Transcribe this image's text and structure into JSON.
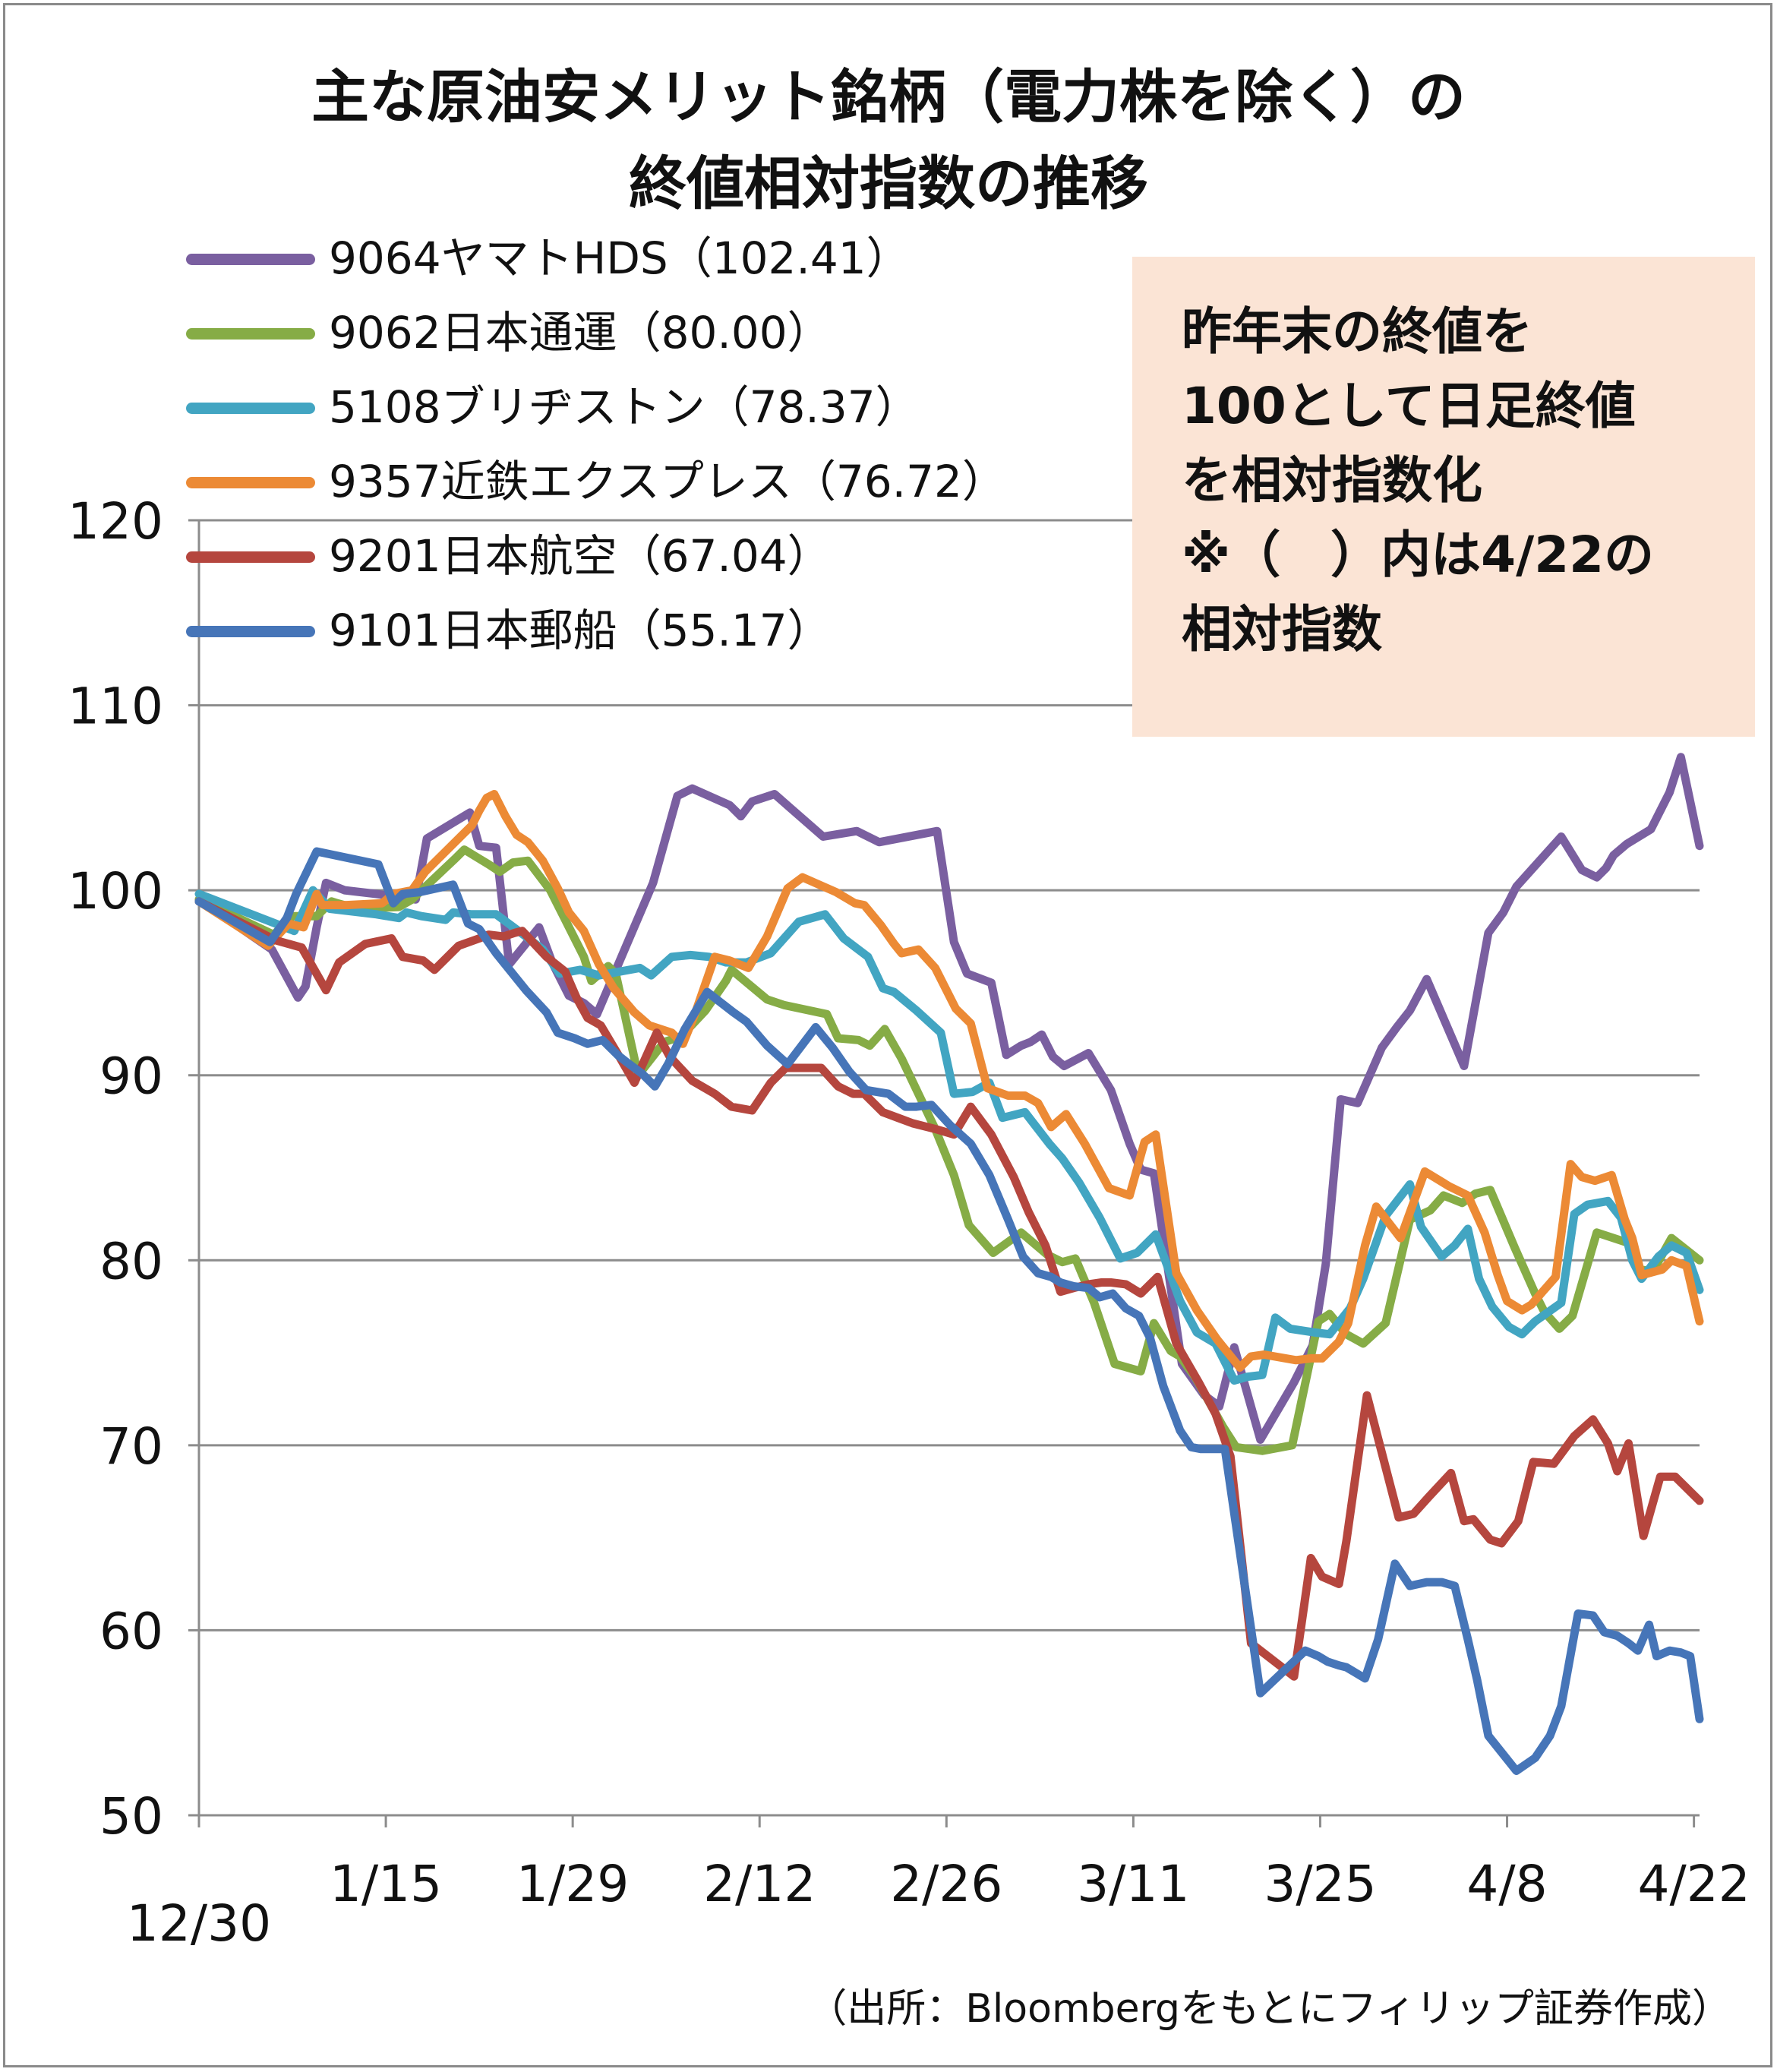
{
  "title": {
    "line1": "主な原油安メリット銘柄（電力株を除く）の",
    "line2": "終値相対指数の推移"
  },
  "note": {
    "lines": [
      "昨年末の終値を",
      "100として日足終値",
      "を相対指数化",
      "※（　）内は4/22の",
      "相対指数"
    ]
  },
  "source": "（出所：Bloombergをもとにフィリップ証券作成）",
  "chart_data": {
    "type": "line",
    "title": "主な原油安メリット銘柄（電力株を除く）の終値相対指数の推移",
    "xlabel": "",
    "ylabel": "",
    "ylim": [
      50,
      120
    ],
    "yticks": [
      50,
      60,
      70,
      80,
      90,
      100,
      110,
      120
    ],
    "xlim": [
      0,
      80.3
    ],
    "xtick_labels": [
      {
        "x": 0,
        "label": "12/30"
      },
      {
        "x": 10,
        "label": "1/15"
      },
      {
        "x": 20,
        "label": "1/29"
      },
      {
        "x": 30,
        "label": "2/12"
      },
      {
        "x": 40,
        "label": "2/26"
      },
      {
        "x": 50,
        "label": "3/11"
      },
      {
        "x": 60,
        "label": "3/25"
      },
      {
        "x": 70,
        "label": "4/8"
      },
      {
        "x": 80,
        "label": "4/22"
      }
    ],
    "grid": "horizontal",
    "legend_position": "top-left",
    "series": [
      {
        "name": "9064ヤマトHDS（102.41）",
        "color": "#7a5fa0",
        "x": [
          0,
          3.9,
          5.3,
          5.7,
          6.3,
          6.8,
          7.8,
          9.5,
          11.6,
          12.2,
          14.5,
          15.0,
          15.9,
          16.6,
          18.2,
          18.9,
          19.8,
          20.6,
          21.3,
          24.3,
          25.6,
          26.4,
          28.4,
          29.0,
          29.6,
          30.8,
          31.7,
          33.4,
          35.2,
          36.4,
          39.5,
          40.4,
          41.1,
          42.4,
          43.2,
          44.0,
          44.5,
          45.1,
          45.7,
          46.3,
          47.6,
          48.8,
          49.8,
          50.4,
          51.1,
          52.6,
          53.8,
          54.6,
          55.4,
          56.8,
          58.6,
          59.6,
          60.3,
          61.1,
          62.0,
          63.3,
          64.1,
          64.8,
          65.7,
          67.7,
          69.0,
          69.8,
          70.5,
          72.9,
          74.0,
          74.8,
          75.3,
          75.7,
          76.4,
          77.7,
          78.7,
          79.3,
          80.3
        ],
        "y": [
          99.5,
          96.8,
          94.2,
          94.8,
          98.0,
          100.4,
          100.0,
          99.8,
          99.5,
          102.8,
          104.2,
          102.4,
          102.3,
          96.0,
          98.0,
          96.1,
          94.3,
          93.9,
          93.3,
          100.4,
          105.1,
          105.5,
          104.6,
          104.0,
          104.8,
          105.2,
          104.4,
          102.9,
          103.2,
          102.6,
          103.2,
          97.2,
          95.5,
          95.0,
          91.1,
          91.6,
          91.8,
          92.2,
          91.0,
          90.5,
          91.2,
          89.2,
          86.3,
          84.9,
          84.7,
          74.4,
          72.7,
          72.1,
          75.3,
          70.3,
          73.4,
          75.4,
          79.8,
          88.7,
          88.5,
          91.5,
          92.6,
          93.5,
          95.2,
          90.5,
          97.7,
          98.8,
          100.2,
          102.9,
          101.1,
          100.7,
          101.2,
          101.9,
          102.5,
          103.3,
          105.3,
          107.2,
          102.4
        ]
      },
      {
        "name": "9062日本通運（80.00）",
        "color": "#86ac46",
        "x": [
          0,
          4.0,
          5.0,
          6.3,
          7.1,
          7.4,
          8.5,
          10.7,
          11.4,
          13.7,
          14.2,
          15.5,
          16.1,
          16.8,
          17.6,
          18.8,
          19.5,
          20.6,
          21.0,
          21.9,
          22.3,
          23.5,
          24.9,
          25.8,
          27.1,
          28.2,
          28.5,
          30.4,
          31.3,
          33.6,
          34.2,
          35.3,
          35.9,
          36.7,
          37.6,
          39.4,
          40.4,
          41.2,
          42.5,
          44.0,
          45.4,
          46.2,
          46.9,
          47.9,
          49.0,
          50.4,
          51.1,
          52.0,
          52.5,
          53.3,
          54.3,
          54.8,
          55.5,
          56.9,
          58.5,
          59.9,
          60.5,
          61.4,
          62.3,
          63.5,
          64.8,
          65.9,
          66.6,
          67.6,
          68.3,
          69.1,
          70.4,
          71.5,
          72.0,
          72.8,
          73.5,
          74.8,
          76.6,
          77.1,
          77.8,
          78.8,
          80.3
        ],
        "y": [
          99.5,
          97.6,
          98.6,
          98.6,
          99.4,
          99.3,
          99.0,
          99.1,
          99.5,
          101.7,
          102.2,
          101.4,
          101.0,
          101.5,
          101.6,
          100.0,
          98.6,
          96.4,
          95.1,
          95.9,
          95.5,
          90.0,
          91.8,
          92.1,
          93.5,
          95.1,
          95.7,
          94.1,
          93.8,
          93.3,
          92.0,
          91.9,
          91.6,
          92.5,
          90.9,
          87.1,
          84.6,
          81.9,
          80.4,
          81.5,
          80.3,
          79.9,
          80.1,
          77.7,
          74.4,
          74.0,
          76.6,
          75.1,
          74.8,
          73.7,
          71.9,
          71.0,
          69.9,
          69.7,
          70.0,
          76.7,
          77.1,
          76.0,
          75.5,
          76.6,
          82.2,
          82.7,
          83.5,
          83.1,
          83.6,
          83.8,
          80.7,
          78.2,
          77.2,
          76.3,
          77.0,
          81.5,
          80.9,
          79.5,
          79.4,
          81.2,
          80.0
        ]
      },
      {
        "name": "5108ブリヂストン（78.37）",
        "color": "#42a5c2",
        "x": [
          0,
          4.1,
          5.1,
          6.1,
          7.0,
          9.5,
          10.7,
          11.1,
          11.9,
          13.2,
          13.6,
          14.6,
          15.9,
          17.1,
          18.4,
          19.3,
          20.4,
          21.4,
          23.6,
          24.2,
          25.3,
          26.3,
          27.3,
          28.2,
          29.3,
          30.6,
          32.1,
          33.5,
          34.5,
          35.8,
          36.6,
          37.2,
          38.4,
          39.7,
          40.4,
          41.4,
          42.3,
          43.0,
          44.2,
          45.5,
          46.2,
          47.1,
          48.2,
          49.3,
          50.2,
          51.2,
          52.0,
          52.5,
          53.4,
          54.4,
          55.4,
          56.1,
          56.9,
          57.6,
          58.4,
          59.7,
          60.5,
          61.6,
          62.3,
          63.5,
          64.8,
          65.4,
          66.5,
          67.2,
          67.9,
          68.5,
          69.2,
          70.1,
          70.8,
          71.5,
          72.2,
          72.9,
          73.6,
          74.3,
          75.4,
          76.1,
          76.7,
          77.2,
          78.1,
          78.8,
          79.6,
          80.3
        ],
        "y": [
          99.8,
          98.2,
          97.8,
          100.0,
          99.0,
          98.7,
          98.5,
          98.8,
          98.6,
          98.4,
          98.8,
          98.7,
          98.7,
          97.8,
          96.8,
          95.5,
          95.7,
          95.4,
          95.8,
          95.4,
          96.4,
          96.5,
          96.4,
          96.1,
          96.1,
          96.6,
          98.3,
          98.7,
          97.4,
          96.4,
          94.7,
          94.5,
          93.5,
          92.3,
          89.0,
          89.1,
          89.6,
          87.7,
          88.0,
          86.3,
          85.5,
          84.2,
          82.3,
          80.1,
          80.4,
          81.4,
          79.2,
          77.8,
          76.1,
          75.5,
          73.5,
          73.7,
          73.8,
          76.9,
          76.3,
          76.1,
          76.0,
          77.4,
          79.0,
          82.4,
          84.1,
          81.8,
          80.2,
          80.8,
          81.7,
          79.0,
          77.5,
          76.4,
          76.0,
          76.7,
          77.2,
          77.7,
          82.5,
          83.0,
          83.2,
          82.3,
          80.0,
          79.0,
          80.2,
          80.8,
          80.4,
          78.4
        ]
      },
      {
        "name": "9357近鉄エクスプレス（76.72）",
        "color": "#ec8a35",
        "x": [
          0,
          3.7,
          4.8,
          5.6,
          6.3,
          6.6,
          7.9,
          9.8,
          10.4,
          11.4,
          12.1,
          13.2,
          14.2,
          14.6,
          15.0,
          15.4,
          15.8,
          16.4,
          17.0,
          17.6,
          18.4,
          19.2,
          19.8,
          20.6,
          21.4,
          22.2,
          23.3,
          24.1,
          25.3,
          25.9,
          26.5,
          27.6,
          28.4,
          29.4,
          30.4,
          31.5,
          32.3,
          34.1,
          35.1,
          35.6,
          36.5,
          37.2,
          37.6,
          38.5,
          39.4,
          40.5,
          41.3,
          42.2,
          43.3,
          44.2,
          44.9,
          45.6,
          46.4,
          47.4,
          48.7,
          49.8,
          50.6,
          51.2,
          52.3,
          53.4,
          54.5,
          55.7,
          56.3,
          57.0,
          58.7,
          59.5,
          60.1,
          61.0,
          61.5,
          62.4,
          63.0,
          64.3,
          65.6,
          66.9,
          67.9,
          68.8,
          69.5,
          70.0,
          70.8,
          71.3,
          71.9,
          72.6,
          73.4,
          74.0,
          74.7,
          75.6,
          76.3,
          76.7,
          77.2,
          78.3,
          78.8,
          79.6,
          80.3
        ],
        "y": [
          99.4,
          97.0,
          98.2,
          98.0,
          99.8,
          99.2,
          99.2,
          99.3,
          99.8,
          100.0,
          101.0,
          102.1,
          103.1,
          103.5,
          104.3,
          105.0,
          105.2,
          104.0,
          103.0,
          102.6,
          101.6,
          100.1,
          98.8,
          97.8,
          96.0,
          94.7,
          93.4,
          92.7,
          92.3,
          91.7,
          93.2,
          96.4,
          96.2,
          95.8,
          97.5,
          100.1,
          100.7,
          99.9,
          99.3,
          99.2,
          98.1,
          97.1,
          96.6,
          96.8,
          95.8,
          93.6,
          92.8,
          89.3,
          88.9,
          88.9,
          88.5,
          87.2,
          87.9,
          86.3,
          83.9,
          83.5,
          86.4,
          86.8,
          79.3,
          77.3,
          75.7,
          74.2,
          74.8,
          74.9,
          74.6,
          74.7,
          74.7,
          75.6,
          76.6,
          80.8,
          82.9,
          81.2,
          84.8,
          84.0,
          83.5,
          81.5,
          79.2,
          77.8,
          77.3,
          77.6,
          78.3,
          79.1,
          85.2,
          84.5,
          84.3,
          84.6,
          82.2,
          81.2,
          79.2,
          79.5,
          80.0,
          79.7,
          76.7
        ]
      },
      {
        "name": "9201日本航空（67.04）",
        "color": "#b5463e",
        "x": [
          0,
          4.1,
          5.5,
          6.8,
          7.5,
          8.9,
          10.3,
          10.9,
          12.0,
          12.6,
          13.9,
          15.0,
          15.5,
          16.3,
          16.9,
          17.3,
          18.6,
          19.6,
          20.2,
          20.8,
          21.5,
          22.5,
          23.3,
          24.5,
          25.2,
          26.4,
          27.6,
          28.5,
          29.6,
          30.6,
          31.4,
          33.3,
          34.2,
          35.0,
          35.6,
          36.6,
          37.4,
          38.2,
          39.4,
          40.4,
          41.3,
          42.4,
          43.6,
          44.4,
          45.3,
          46.1,
          46.8,
          47.6,
          48.3,
          48.8,
          49.6,
          50.4,
          51.3,
          52.3,
          53.5,
          54.4,
          55.2,
          56.3,
          58.6,
          59.5,
          60.1,
          61.0,
          61.4,
          62.5,
          63.4,
          64.2,
          65.0,
          65.8,
          67.0,
          67.7,
          68.2,
          69.1,
          69.7,
          70.6,
          71.4,
          72.5,
          73.6,
          74.6,
          75.4,
          75.9,
          76.5,
          77.3,
          78.2,
          79.0,
          80.3
        ],
        "y": [
          99.4,
          97.3,
          96.9,
          94.6,
          96.1,
          97.1,
          97.4,
          96.4,
          96.2,
          95.7,
          97.0,
          97.4,
          97.6,
          97.5,
          97.7,
          97.8,
          96.4,
          95.6,
          94.2,
          93.1,
          92.7,
          91.0,
          89.6,
          92.3,
          91.0,
          89.7,
          89.0,
          88.3,
          88.1,
          89.6,
          90.4,
          90.4,
          89.4,
          89.0,
          89.0,
          88.0,
          87.7,
          87.4,
          87.1,
          86.8,
          88.3,
          86.8,
          84.5,
          82.6,
          80.8,
          78.3,
          78.5,
          78.7,
          78.8,
          78.8,
          78.7,
          78.2,
          79.1,
          75.5,
          73.4,
          71.7,
          69.4,
          59.3,
          57.5,
          63.9,
          62.9,
          62.5,
          64.8,
          72.7,
          69.2,
          66.1,
          66.3,
          67.2,
          68.5,
          65.9,
          66.0,
          64.9,
          64.7,
          65.9,
          69.1,
          69.0,
          70.5,
          71.4,
          70.1,
          68.6,
          70.1,
          65.1,
          68.3,
          68.3,
          67.0
        ]
      },
      {
        "name": "9101日本郵船（55.17）",
        "color": "#4675b8",
        "x": [
          0,
          3.8,
          4.7,
          5.2,
          6.3,
          9.6,
          10.4,
          10.9,
          11.8,
          13.6,
          14.4,
          15.0,
          15.9,
          16.7,
          17.5,
          18.6,
          19.2,
          20.1,
          20.8,
          21.6,
          22.4,
          22.9,
          23.7,
          24.4,
          25.1,
          26.0,
          27.2,
          28.6,
          29.3,
          30.4,
          31.5,
          33.0,
          33.9,
          34.8,
          35.7,
          36.9,
          37.8,
          38.4,
          39.2,
          40.2,
          41.3,
          42.3,
          43.3,
          44.1,
          44.9,
          45.6,
          46.1,
          46.8,
          47.6,
          48.2,
          48.9,
          49.6,
          50.3,
          50.9,
          51.6,
          52.5,
          53.1,
          53.6,
          54.9,
          56.8,
          59.2,
          59.9,
          60.4,
          61.0,
          61.4,
          62.4,
          63.1,
          64.0,
          64.8,
          65.7,
          66.5,
          67.2,
          67.9,
          68.4,
          69.0,
          70.5,
          71.5,
          72.3,
          72.9,
          73.8,
          74.6,
          75.2,
          75.9,
          76.5,
          77.0,
          77.6,
          78.0,
          78.7,
          79.3,
          79.8,
          80.3
        ],
        "y": [
          99.4,
          97.2,
          98.5,
          99.8,
          102.1,
          101.4,
          99.3,
          99.8,
          99.9,
          100.3,
          98.2,
          97.9,
          96.6,
          95.6,
          94.6,
          93.4,
          92.3,
          92.0,
          91.7,
          91.9,
          91.1,
          90.7,
          90.1,
          89.4,
          90.6,
          92.5,
          94.5,
          93.4,
          92.9,
          91.6,
          90.6,
          92.6,
          91.5,
          90.2,
          89.2,
          89.0,
          88.3,
          88.3,
          88.4,
          87.3,
          86.3,
          84.6,
          82.2,
          80.2,
          79.3,
          79.1,
          78.8,
          78.6,
          78.5,
          78.0,
          78.2,
          77.4,
          77.0,
          75.8,
          73.2,
          70.8,
          69.9,
          69.8,
          69.8,
          56.6,
          58.9,
          58.6,
          58.3,
          58.1,
          58.0,
          57.4,
          59.5,
          63.6,
          62.4,
          62.6,
          62.6,
          62.4,
          59.5,
          57.3,
          54.3,
          52.4,
          53.1,
          54.3,
          55.9,
          60.9,
          60.8,
          59.9,
          59.7,
          59.3,
          58.9,
          60.3,
          58.6,
          58.9,
          58.8,
          58.6,
          55.2
        ]
      }
    ]
  }
}
